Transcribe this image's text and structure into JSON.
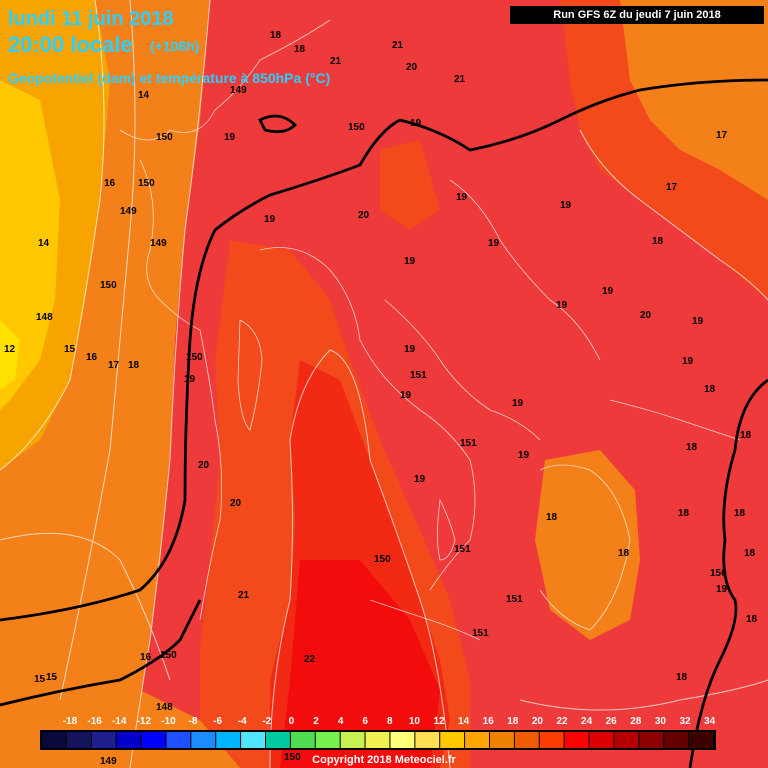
{
  "header": {
    "date": "lundi 11 juin 2018",
    "time": "20:00 locale",
    "forecast_hours": "(+108h)",
    "subtitle": "Geopotentiel (dam) et température à 850hPa (°C)"
  },
  "run_info": "Run GFS 6Z du jeudi 7 juin 2018",
  "copyright": "Copyright 2018 Meteociel.fr",
  "colors": {
    "sea_warm": "#ee3a3a",
    "deep_red": "#f20c0c",
    "orange_red": "#f24a1a",
    "orange": "#f4801a",
    "amber": "#f7a400",
    "gold": "#ffc800",
    "yellow": "#ffe000",
    "contour": "#ffffff",
    "jet_line": "#000000"
  },
  "legend": {
    "ticks": [
      "-18",
      "-16",
      "-14",
      "-12",
      "-10",
      "-8",
      "-6",
      "-4",
      "-2",
      "0",
      "2",
      "4",
      "6",
      "8",
      "10",
      "12",
      "14",
      "16",
      "18",
      "20",
      "22",
      "24",
      "26",
      "28",
      "30",
      "32",
      "34"
    ],
    "swatch_colors": [
      "#0a0a3a",
      "#14145a",
      "#1e1e8c",
      "#0000c8",
      "#0000ff",
      "#1e50ff",
      "#1e8cff",
      "#00b4ff",
      "#50e6ff",
      "#00c8a0",
      "#50dc50",
      "#78f050",
      "#c8f050",
      "#f0f050",
      "#ffff78",
      "#ffe050",
      "#ffc800",
      "#ffa500",
      "#f08200",
      "#f05a00",
      "#ff3c00",
      "#ff0000",
      "#dc0000",
      "#b40000",
      "#8c0000",
      "#640000",
      "#3c0000"
    ]
  },
  "temperature_labels": [
    "18",
    "18",
    "21",
    "21",
    "20",
    "19",
    "19",
    "21",
    "14",
    "149",
    "150",
    "16",
    "150",
    "150",
    "19",
    "20",
    "19",
    "19",
    "17",
    "17",
    "19",
    "19",
    "18",
    "14",
    "149",
    "149",
    "19",
    "20",
    "19",
    "19",
    "19",
    "19",
    "148",
    "150",
    "12",
    "15",
    "16",
    "17",
    "18",
    "150",
    "19",
    "19",
    "151",
    "18",
    "18",
    "18",
    "19",
    "151",
    "19",
    "19",
    "18",
    "18",
    "20",
    "18",
    "18",
    "18",
    "20",
    "151",
    "150",
    "21",
    "19",
    "18",
    "18",
    "16",
    "150",
    "151",
    "22",
    "151",
    "15",
    "15",
    "148",
    "149",
    "150"
  ],
  "geopotential_labels": [
    "150",
    "149",
    "150",
    "151",
    "151",
    "150"
  ]
}
